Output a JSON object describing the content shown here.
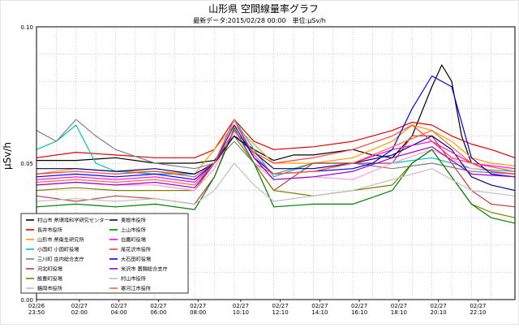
{
  "chart_data": {
    "type": "line",
    "title": "山形県 空間線量率グラフ",
    "subtitle": "最新データ:2015/02/28 00:00　単位:μSv/h",
    "ylabel": "μSv/h",
    "xlabel": "",
    "ylim": [
      0,
      0.1
    ],
    "yticks": [
      "0.00",
      "0.05",
      "0.10"
    ],
    "xticks": [
      {
        "date": "02/26",
        "time": "23:50"
      },
      {
        "date": "02/27",
        "time": "02:00"
      },
      {
        "date": "02/27",
        "time": "04:00"
      },
      {
        "date": "02/27",
        "time": "06:00"
      },
      {
        "date": "02/27",
        "time": "08:00"
      },
      {
        "date": "02/27",
        "time": "10:10"
      },
      {
        "date": "02/27",
        "time": "12:10"
      },
      {
        "date": "02/27",
        "time": "14:10"
      },
      {
        "date": "02/27",
        "time": "16:10"
      },
      {
        "date": "02/27",
        "time": "18:10"
      },
      {
        "date": "02/27",
        "time": "20:10"
      },
      {
        "date": "02/27",
        "time": "22:10"
      }
    ],
    "xlim_hours": [
      0,
      24.2
    ],
    "grid": true,
    "legend_position": "bottom-left",
    "series": [
      {
        "name": "村山市 県環境科学研究センター",
        "color": "#000000",
        "x": [
          0,
          2,
          4,
          6,
          8,
          9,
          10,
          11,
          12,
          13,
          14,
          16,
          17,
          18,
          19,
          20,
          20.5,
          21,
          21.5,
          22,
          23,
          24.2
        ],
        "y": [
          0.051,
          0.051,
          0.052,
          0.05,
          0.05,
          0.051,
          0.06,
          0.055,
          0.051,
          0.053,
          0.053,
          0.055,
          0.053,
          0.052,
          0.06,
          0.078,
          0.086,
          0.08,
          0.06,
          0.05,
          0.047,
          0.046
        ]
      },
      {
        "name": "長井市役所",
        "color": "#e00000",
        "x": [
          0,
          2,
          4,
          6,
          8,
          9,
          10,
          11,
          12,
          14,
          16,
          17,
          18,
          19,
          20,
          21,
          22,
          23,
          24.2
        ],
        "y": [
          0.052,
          0.054,
          0.053,
          0.052,
          0.052,
          0.055,
          0.066,
          0.058,
          0.055,
          0.056,
          0.058,
          0.06,
          0.062,
          0.065,
          0.064,
          0.06,
          0.057,
          0.055,
          0.052
        ]
      },
      {
        "name": "山形市 県衛生研究所",
        "color": "#ff9900",
        "x": [
          0,
          2,
          4,
          6,
          8,
          9,
          10,
          11,
          12,
          14,
          16,
          18,
          19,
          20,
          21,
          22,
          23,
          24.2
        ],
        "y": [
          0.046,
          0.048,
          0.047,
          0.047,
          0.046,
          0.055,
          0.064,
          0.057,
          0.05,
          0.05,
          0.052,
          0.058,
          0.064,
          0.062,
          0.058,
          0.052,
          0.05,
          0.049
        ]
      },
      {
        "name": "小国町 小国町役場",
        "color": "#00c0c0",
        "x": [
          0,
          1,
          2,
          3,
          4,
          6,
          8,
          9,
          10,
          11,
          12,
          14,
          16,
          18,
          20,
          22,
          24.2
        ],
        "y": [
          0.055,
          0.058,
          0.064,
          0.05,
          0.047,
          0.046,
          0.046,
          0.05,
          0.066,
          0.055,
          0.045,
          0.05,
          0.05,
          0.05,
          0.052,
          0.048,
          0.047
        ]
      },
      {
        "name": "三川町 庄内総合支庁",
        "color": "#808080",
        "x": [
          0,
          1,
          2,
          3,
          4,
          6,
          8,
          9,
          10,
          11,
          12,
          14,
          16,
          18,
          20,
          22,
          24.2
        ],
        "y": [
          0.062,
          0.058,
          0.066,
          0.06,
          0.055,
          0.05,
          0.048,
          0.05,
          0.058,
          0.05,
          0.046,
          0.05,
          0.05,
          0.048,
          0.05,
          0.047,
          0.046
        ]
      },
      {
        "name": "河北町役場",
        "color": "#c04040",
        "x": [
          0,
          2,
          4,
          6,
          8,
          9,
          10,
          11,
          12,
          13,
          14,
          16,
          18,
          19,
          20,
          21,
          22,
          23,
          24.2
        ],
        "y": [
          0.038,
          0.036,
          0.038,
          0.037,
          0.035,
          0.045,
          0.062,
          0.05,
          0.04,
          0.045,
          0.05,
          0.05,
          0.05,
          0.06,
          0.06,
          0.05,
          0.04,
          0.035,
          0.034
        ]
      },
      {
        "name": "飯豊町役場",
        "color": "#808000",
        "x": [
          0,
          2,
          4,
          6,
          8,
          9,
          10,
          11,
          12,
          14,
          16,
          18,
          19,
          20,
          21,
          22,
          23,
          24.2
        ],
        "y": [
          0.04,
          0.041,
          0.04,
          0.04,
          0.04,
          0.05,
          0.06,
          0.05,
          0.04,
          0.038,
          0.04,
          0.042,
          0.05,
          0.055,
          0.045,
          0.035,
          0.032,
          0.03
        ]
      },
      {
        "name": "鶴岡市役所",
        "color": "#ff99dd",
        "x": [
          0,
          2,
          4,
          6,
          8,
          9,
          10,
          11,
          12,
          14,
          16,
          18,
          20,
          22,
          24.2
        ],
        "y": [
          0.042,
          0.043,
          0.042,
          0.042,
          0.04,
          0.048,
          0.062,
          0.05,
          0.044,
          0.045,
          0.044,
          0.05,
          0.055,
          0.048,
          0.046
        ]
      },
      {
        "name": "東根市役所",
        "color": "#000080",
        "x": [
          0,
          2,
          4,
          6,
          8,
          9,
          10,
          11,
          12,
          14,
          16,
          18,
          20,
          21,
          22,
          23,
          24.2
        ],
        "y": [
          0.048,
          0.048,
          0.047,
          0.048,
          0.046,
          0.05,
          0.06,
          0.054,
          0.048,
          0.048,
          0.05,
          0.053,
          0.06,
          0.055,
          0.045,
          0.042,
          0.04
        ]
      },
      {
        "name": "上山市役所",
        "color": "#008000",
        "x": [
          0,
          2,
          4,
          6,
          8,
          9,
          10,
          11,
          12,
          14,
          16,
          18,
          19,
          20,
          21,
          22,
          23,
          24.2
        ],
        "y": [
          0.034,
          0.035,
          0.034,
          0.035,
          0.033,
          0.045,
          0.063,
          0.05,
          0.034,
          0.035,
          0.035,
          0.04,
          0.05,
          0.055,
          0.045,
          0.035,
          0.03,
          0.028
        ]
      },
      {
        "name": "白鷹町役場",
        "color": "#ff00ff",
        "x": [
          0,
          2,
          4,
          6,
          8,
          9,
          10,
          11,
          12,
          14,
          16,
          18,
          20,
          22,
          24.2
        ],
        "y": [
          0.044,
          0.045,
          0.044,
          0.045,
          0.043,
          0.05,
          0.066,
          0.052,
          0.046,
          0.047,
          0.05,
          0.055,
          0.058,
          0.05,
          0.048
        ]
      },
      {
        "name": "尾花沢市役所",
        "color": "#ff4040",
        "x": [
          0,
          2,
          4,
          6,
          8,
          9,
          10,
          11,
          12,
          14,
          16,
          18,
          19,
          20,
          21,
          22,
          23,
          24.2
        ],
        "y": [
          0.046,
          0.047,
          0.046,
          0.047,
          0.045,
          0.05,
          0.062,
          0.054,
          0.05,
          0.052,
          0.055,
          0.06,
          0.064,
          0.058,
          0.052,
          0.05,
          0.047,
          0.046
        ]
      },
      {
        "name": "大石田町役場",
        "color": "#0000ff",
        "x": [
          0,
          2,
          4,
          6,
          8,
          9,
          10,
          11,
          12,
          14,
          16,
          17,
          18,
          19,
          20,
          21,
          22,
          23,
          24.2
        ],
        "y": [
          0.045,
          0.046,
          0.045,
          0.046,
          0.044,
          0.05,
          0.064,
          0.052,
          0.046,
          0.047,
          0.048,
          0.05,
          0.055,
          0.07,
          0.082,
          0.078,
          0.052,
          0.046,
          0.045
        ]
      },
      {
        "name": "米沢市 置賜総合支庁",
        "color": "#9900cc",
        "x": [
          0,
          2,
          4,
          6,
          8,
          9,
          10,
          11,
          12,
          14,
          16,
          18,
          20,
          22,
          24.2
        ],
        "y": [
          0.042,
          0.043,
          0.042,
          0.043,
          0.041,
          0.05,
          0.066,
          0.052,
          0.044,
          0.045,
          0.047,
          0.052,
          0.056,
          0.046,
          0.045
        ]
      },
      {
        "name": "村山市役所",
        "color": "#c0c0c0",
        "x": [
          0,
          2,
          4,
          6,
          8,
          9,
          10,
          11,
          12,
          14,
          16,
          18,
          20,
          22,
          24.2
        ],
        "y": [
          0.036,
          0.037,
          0.036,
          0.037,
          0.035,
          0.04,
          0.05,
          0.042,
          0.036,
          0.038,
          0.04,
          0.044,
          0.048,
          0.04,
          0.038
        ]
      },
      {
        "name": "寒河江市役所",
        "color": "#ff6633",
        "x": [
          0,
          2,
          4,
          6,
          8,
          9,
          10,
          11,
          12,
          14,
          16,
          18,
          20,
          22,
          24.2
        ],
        "y": [
          0.043,
          0.044,
          0.043,
          0.044,
          0.042,
          0.05,
          0.066,
          0.053,
          0.046,
          0.047,
          0.05,
          0.056,
          0.062,
          0.05,
          0.047
        ]
      }
    ]
  }
}
